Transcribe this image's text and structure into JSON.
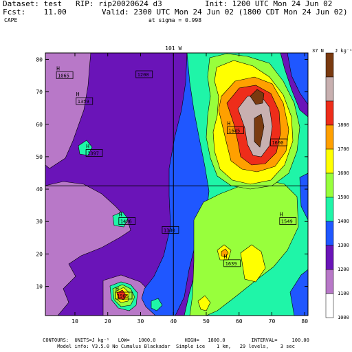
{
  "header": {
    "dataset": "Dataset: test   RIP: rip20020624 d3",
    "fcst": "Fcst:    11.00",
    "field": "CAPE",
    "init": "Init: 1200 UTC Mon 24 Jun 02",
    "valid": "Valid: 2300 UTC Mon 24 Jun 02 (1800 CDT Mon 24 Jun 02)",
    "sigma": "at sigma = 0.998"
  },
  "footer": {
    "contours": "CONTOURS:  UNITS=J kg⁻¹   LOW=   1000.0          HIGH=   1800.0         INTERVAL=     100.00",
    "model": "Model info: V3.5.0 No Cumulus Blackadar  Simple ice    1 km,   29 levels,    3 sec"
  },
  "chart_data": {
    "type": "heatmap",
    "title": "CAPE",
    "xlim": [
      1,
      81
    ],
    "ylim": [
      1,
      82
    ],
    "xticks": [
      10,
      20,
      30,
      40,
      50,
      60,
      70,
      80
    ],
    "yticks": [
      10,
      20,
      30,
      40,
      50,
      60,
      70,
      80
    ],
    "crosshair": {
      "x": 40,
      "y": 41
    },
    "top_label": "101 W",
    "right_label": "37 N",
    "colorbar": {
      "unit": "J kg⁻¹",
      "levels": [
        {
          "value": "1000",
          "color": "#ffffff"
        },
        {
          "value": "1100",
          "color": "#b878c8"
        },
        {
          "value": "1200",
          "color": "#6a14b8"
        },
        {
          "value": "1300",
          "color": "#1f57ff"
        },
        {
          "value": "1400",
          "color": "#1ff5a8"
        },
        {
          "value": "1500",
          "color": "#98ff3c"
        },
        {
          "value": "1600",
          "color": "#ffff00"
        },
        {
          "value": "1700",
          "color": "#ffa000"
        },
        {
          "value": "1800",
          "color": "#ee2d1a"
        },
        {
          "value": "",
          "color": "#c8b0b0"
        },
        {
          "value": "",
          "color": "#7a3a10"
        }
      ]
    },
    "highs": [
      {
        "x": 5,
        "y": 76,
        "label": "1065"
      },
      {
        "x": 11,
        "y": 68,
        "label": "1359"
      },
      {
        "x": 14,
        "y": 52,
        "label": "1397"
      },
      {
        "x": 24,
        "y": 31,
        "label": "1426"
      },
      {
        "x": 57,
        "y": 59,
        "label": "1685"
      },
      {
        "x": 73,
        "y": 31,
        "label": "1549"
      },
      {
        "x": 56,
        "y": 18,
        "label": "1639"
      },
      {
        "x": 23,
        "y": 8,
        "label": "1905"
      }
    ],
    "contour_labels": [
      {
        "x": 29,
        "y": 75,
        "label": "1200"
      },
      {
        "x": 37,
        "y": 27,
        "label": "1300"
      },
      {
        "x": 70,
        "y": 54,
        "label": "1600"
      }
    ]
  }
}
